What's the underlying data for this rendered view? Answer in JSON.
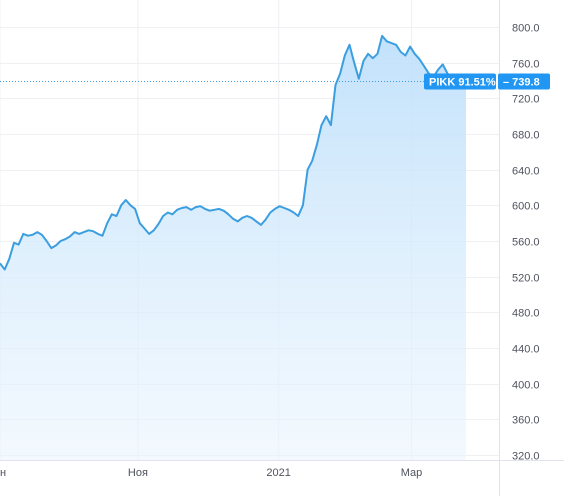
{
  "chart_data": {
    "type": "area",
    "ticker": "PIKK",
    "change_label": "PIKK 91.51%",
    "last_value_label": "739.8",
    "last_value": 739.8,
    "ylim": [
      320,
      820
    ],
    "y_ticks": [
      {
        "value": 800,
        "label": "800.0"
      },
      {
        "value": 760,
        "label": "760.0"
      },
      {
        "value": 720,
        "label": "720.0"
      },
      {
        "value": 680,
        "label": "680.0"
      },
      {
        "value": 640,
        "label": "640.0"
      },
      {
        "value": 600,
        "label": "600.0"
      },
      {
        "value": 560,
        "label": "560.0"
      },
      {
        "value": 520,
        "label": "520.0"
      },
      {
        "value": 480,
        "label": "480.0"
      },
      {
        "value": 440,
        "label": "440.0"
      },
      {
        "value": 400,
        "label": "400.0"
      },
      {
        "value": 360,
        "label": "360.0"
      },
      {
        "value": 320,
        "label": "320.0"
      }
    ],
    "x_ticks": [
      {
        "label": "н",
        "pos": 0.0
      },
      {
        "label": "Ноя",
        "pos": 0.296
      },
      {
        "label": "2021",
        "pos": 0.598
      },
      {
        "label": "Мар",
        "pos": 0.883
      }
    ],
    "x_range": [
      0,
      100
    ],
    "series": [
      {
        "x": [
          0,
          1,
          2,
          3,
          4,
          5,
          6,
          7,
          8,
          9,
          10,
          11,
          12,
          13,
          14,
          15,
          16,
          17,
          18,
          19,
          20,
          21,
          22,
          23,
          24,
          25,
          26,
          27,
          28,
          29,
          30,
          31,
          32,
          33,
          34,
          35,
          36,
          37,
          38,
          39,
          40,
          41,
          42,
          43,
          44,
          45,
          46,
          47,
          48,
          49,
          50,
          51,
          52,
          53,
          54,
          55,
          56,
          57,
          58,
          59,
          60,
          61,
          62,
          63,
          64,
          65,
          66,
          67,
          68,
          69,
          70,
          71,
          72,
          73,
          74,
          75,
          76,
          77,
          78,
          79,
          80,
          81,
          82,
          83,
          84,
          85,
          86,
          87,
          88,
          89,
          90,
          91,
          92,
          93,
          94,
          95,
          96,
          97,
          98,
          99,
          100
        ],
        "values": [
          535,
          528,
          540,
          558,
          556,
          568,
          566,
          567,
          570,
          567,
          560,
          552,
          555,
          560,
          562,
          565,
          570,
          568,
          570,
          572,
          571,
          568,
          566,
          580,
          590,
          588,
          600,
          606,
          600,
          596,
          580,
          574,
          568,
          572,
          579,
          588,
          592,
          590,
          595,
          597,
          598,
          595,
          598,
          599,
          596,
          594,
          595,
          596,
          594,
          590,
          585,
          582,
          586,
          588,
          586,
          582,
          578,
          584,
          592,
          596,
          599,
          597,
          595,
          592,
          588,
          600,
          640,
          650,
          668,
          690,
          700,
          690,
          735,
          748,
          768,
          780,
          760,
          742,
          762,
          770,
          765,
          770,
          790,
          784,
          782,
          780,
          772,
          768,
          778,
          770,
          764,
          756,
          748,
          744,
          752,
          758,
          748,
          742,
          740,
          739.8,
          739.8
        ]
      }
    ]
  }
}
